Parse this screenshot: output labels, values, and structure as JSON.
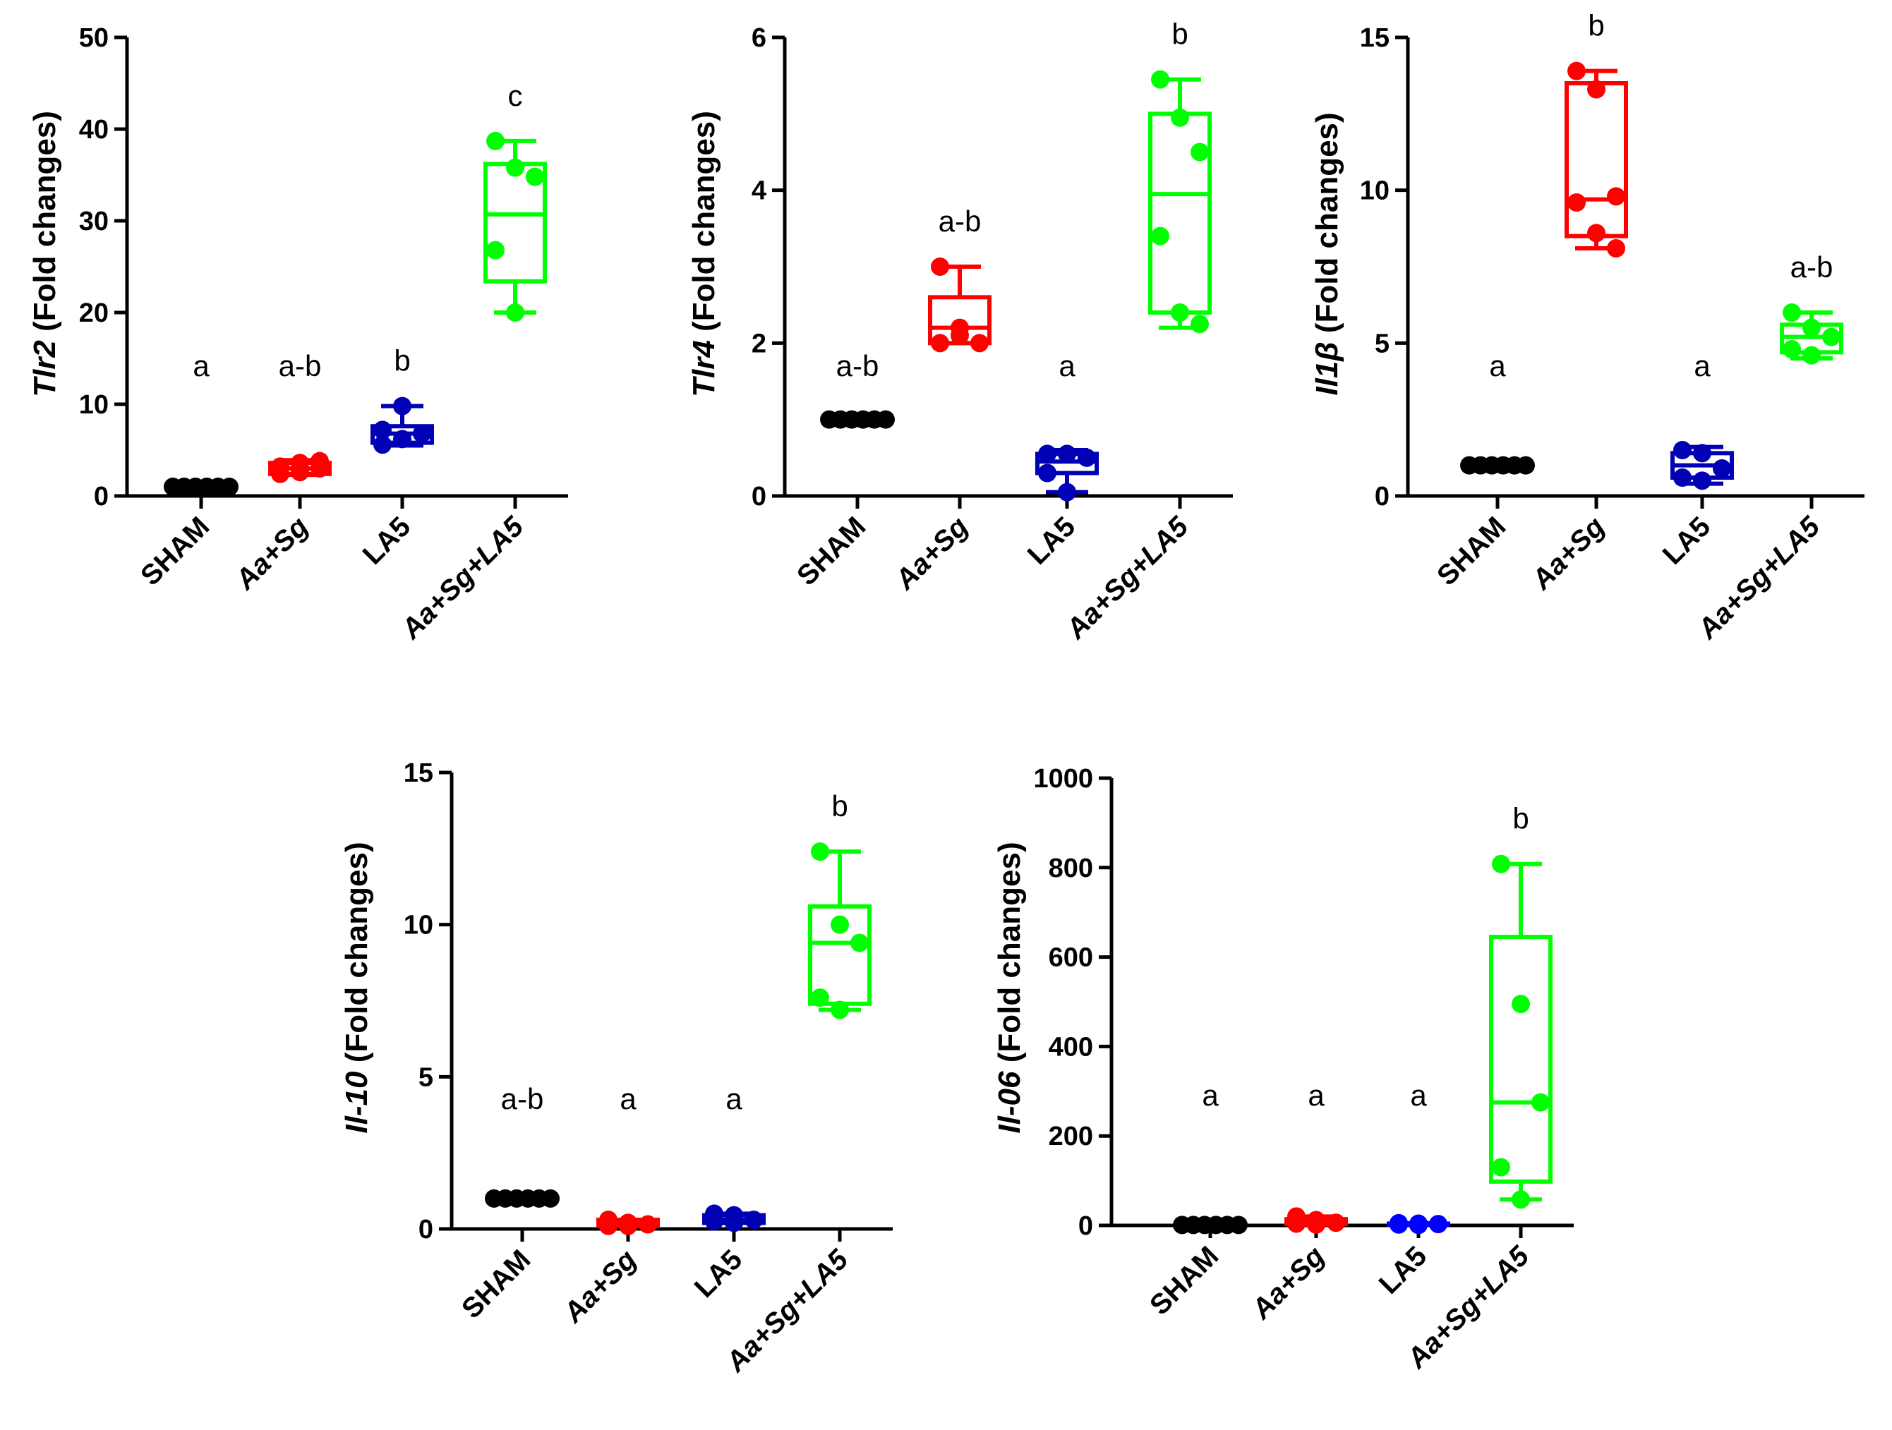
{
  "colors": {
    "SHAM": "#000000",
    "Aa+Sg": "#ff0000",
    "LA5": "#0000b4",
    "LA5_panel5": "#0000ff",
    "Aa+Sg+LA5": "#00ff00"
  },
  "chart_data": [
    {
      "type": "box",
      "gene": "Tlr2",
      "ylabel_suffix": " (Fold changes)",
      "ylim": [
        0,
        50
      ],
      "yticks": [
        "0",
        "10",
        "20",
        "30",
        "40",
        "50"
      ],
      "categories": [
        "SHAM",
        "Aa+Sg",
        "LA5",
        "Aa+Sg+LA5"
      ],
      "letters": [
        "a",
        "a-b",
        "b",
        "c"
      ],
      "groups": [
        {
          "points": [
            1,
            1,
            1,
            1,
            1,
            1
          ],
          "min": 1,
          "q1": 1,
          "median": 1,
          "q3": 1,
          "max": 1,
          "color_key": "SHAM"
        },
        {
          "points": [
            2.4,
            2.6,
            3,
            3.2,
            3.6,
            3.8
          ],
          "min": 2.3,
          "q1": 2.4,
          "median": 3.0,
          "q3": 3.6,
          "max": 3.9,
          "color_key": "Aa+Sg"
        },
        {
          "points": [
            5.6,
            6.2,
            6.8,
            7.2,
            9.8
          ],
          "min": 5.5,
          "q1": 5.8,
          "median": 6.8,
          "q3": 7.6,
          "max": 9.8,
          "color_key": "LA5"
        },
        {
          "points": [
            38.7,
            35.8,
            34.8,
            26.8,
            20.0
          ],
          "min": 20.0,
          "q1": 23.4,
          "median": 30.7,
          "q3": 36.2,
          "max": 38.7,
          "color_key": "Aa+Sg+LA5"
        }
      ]
    },
    {
      "type": "box",
      "gene": "Tlr4",
      "ylabel_suffix": " (Fold changes)",
      "ylim": [
        0,
        6
      ],
      "yticks": [
        "0",
        "2",
        "4",
        "6"
      ],
      "categories": [
        "SHAM",
        "Aa+Sg",
        "LA5",
        "Aa+Sg+LA5"
      ],
      "letters": [
        "a-b",
        "a-b",
        "a",
        "b"
      ],
      "groups": [
        {
          "points": [
            1,
            1,
            1,
            1,
            1,
            1
          ],
          "min": 1,
          "q1": 1,
          "median": 1,
          "q3": 1,
          "max": 1,
          "color_key": "SHAM"
        },
        {
          "points": [
            3.0,
            2.2,
            2.0,
            2.0,
            2.1
          ],
          "min": 2.0,
          "q1": 2.0,
          "median": 2.2,
          "q3": 2.6,
          "max": 3.0,
          "color_key": "Aa+Sg"
        },
        {
          "points": [
            0.55,
            0.55,
            0.5,
            0.3,
            0.05
          ],
          "min": 0.05,
          "q1": 0.3,
          "median": 0.45,
          "q3": 0.55,
          "max": 0.6,
          "color_key": "LA5"
        },
        {
          "points": [
            5.45,
            4.95,
            4.5,
            3.4,
            2.4,
            2.25
          ],
          "min": 2.2,
          "q1": 2.4,
          "median": 3.95,
          "q3": 5.0,
          "max": 5.45,
          "color_key": "Aa+Sg+LA5"
        }
      ]
    },
    {
      "type": "box",
      "gene": "Il1β",
      "ylabel_suffix": " (Fold changes)",
      "ylim": [
        0,
        15
      ],
      "yticks": [
        "0",
        "5",
        "10",
        "15"
      ],
      "categories": [
        "SHAM",
        "Aa+Sg",
        "LA5",
        "Aa+Sg+LA5"
      ],
      "letters": [
        "a",
        "b",
        "a",
        "a-b"
      ],
      "groups": [
        {
          "points": [
            1,
            1,
            1,
            1,
            1,
            1
          ],
          "min": 1,
          "q1": 1,
          "median": 1,
          "q3": 1,
          "max": 1,
          "color_key": "SHAM"
        },
        {
          "points": [
            13.9,
            13.3,
            9.8,
            9.6,
            8.6,
            8.1
          ],
          "min": 8.1,
          "q1": 8.5,
          "median": 9.7,
          "q3": 13.5,
          "max": 13.9,
          "color_key": "Aa+Sg"
        },
        {
          "points": [
            1.5,
            1.4,
            0.9,
            0.6,
            0.5
          ],
          "min": 0.4,
          "q1": 0.6,
          "median": 1.0,
          "q3": 1.4,
          "max": 1.6,
          "color_key": "LA5"
        },
        {
          "points": [
            6.0,
            5.5,
            5.2,
            4.8,
            4.6
          ],
          "min": 4.5,
          "q1": 4.7,
          "median": 5.2,
          "q3": 5.6,
          "max": 6.0,
          "color_key": "Aa+Sg+LA5"
        }
      ]
    },
    {
      "type": "box",
      "gene": "Il-10",
      "ylabel_suffix": " (Fold changes)",
      "ylim": [
        0,
        15
      ],
      "yticks": [
        "0",
        "5",
        "10",
        "15"
      ],
      "categories": [
        "SHAM",
        "Aa+Sg",
        "LA5",
        "Aa+Sg+LA5"
      ],
      "letters": [
        "a-b",
        "a",
        "a",
        "b"
      ],
      "groups": [
        {
          "points": [
            1,
            1,
            1,
            1,
            1,
            1
          ],
          "min": 1,
          "q1": 1,
          "median": 1,
          "q3": 1,
          "max": 1,
          "color_key": "SHAM"
        },
        {
          "points": [
            0.3,
            0.2,
            0.15,
            0.1,
            0.1
          ],
          "min": 0.1,
          "q1": 0.1,
          "median": 0.2,
          "q3": 0.3,
          "max": 0.3,
          "color_key": "Aa+Sg"
        },
        {
          "points": [
            0.5,
            0.45,
            0.3,
            0.25,
            0.2
          ],
          "min": 0.2,
          "q1": 0.2,
          "median": 0.3,
          "q3": 0.45,
          "max": 0.5,
          "color_key": "LA5"
        },
        {
          "points": [
            12.4,
            10.0,
            9.4,
            7.6,
            7.2
          ],
          "min": 7.2,
          "q1": 7.4,
          "median": 9.4,
          "q3": 10.6,
          "max": 12.4,
          "color_key": "Aa+Sg+LA5"
        }
      ]
    },
    {
      "type": "box",
      "gene": "Il-06",
      "ylabel_suffix": " (Fold changes)",
      "ylim": [
        0,
        1000
      ],
      "yticks": [
        "0",
        "200",
        "400",
        "600",
        "800",
        "1000"
      ],
      "categories": [
        "SHAM",
        "Aa+Sg",
        "LA5",
        "Aa+Sg+LA5"
      ],
      "letters": [
        "a",
        "a",
        "a",
        "b"
      ],
      "groups": [
        {
          "points": [
            1,
            1,
            1,
            1,
            1,
            1
          ],
          "min": 1,
          "q1": 1,
          "median": 1,
          "q3": 1,
          "max": 1,
          "color_key": "SHAM"
        },
        {
          "points": [
            20,
            12,
            6,
            4,
            2
          ],
          "min": 2,
          "q1": 3,
          "median": 6,
          "q3": 14,
          "max": 20,
          "color_key": "Aa+Sg"
        },
        {
          "points": [
            5,
            4,
            3,
            2,
            1
          ],
          "min": 1,
          "q1": 1,
          "median": 3,
          "q3": 4,
          "max": 5,
          "color_key": "LA5_panel5"
        },
        {
          "points": [
            808,
            495,
            275,
            130,
            58
          ],
          "min": 58,
          "q1": 98,
          "median": 275,
          "q3": 645,
          "max": 808,
          "color_key": "Aa+Sg+LA5"
        }
      ]
    }
  ]
}
